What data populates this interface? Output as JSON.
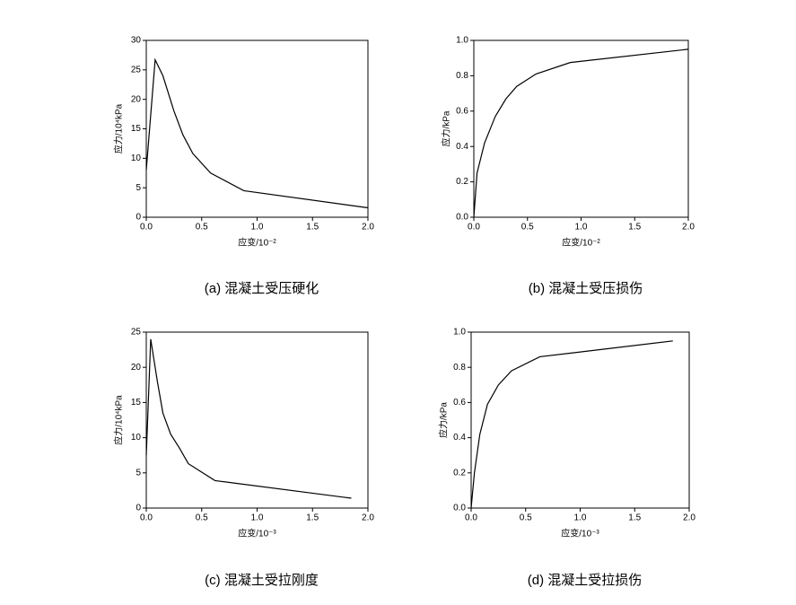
{
  "chart_data": [
    {
      "type": "line",
      "title": "(a)  混凝土受压硬化",
      "x_label": "应变/10⁻²",
      "y_label": "应力/10⁴kPa",
      "color": "#000000",
      "x": [
        0,
        0.08,
        0.15,
        0.25,
        0.33,
        0.42,
        0.58,
        0.88,
        2.0
      ],
      "values": [
        8,
        26.7,
        24,
        18,
        14,
        10.8,
        7.5,
        4.5,
        1.6
      ],
      "xlim": [
        0,
        2.0
      ],
      "ylim": [
        0,
        30
      ],
      "xticks": [
        {
          "value": 0,
          "label": "0.0"
        },
        0.5,
        {
          "value": 1,
          "label": "1.0"
        },
        1.5,
        {
          "value": 2,
          "label": "2.0"
        }
      ],
      "yticks": [
        0,
        5,
        10,
        15,
        20,
        25,
        30
      ]
    },
    {
      "type": "line",
      "title": "(b)  混凝土受压损伤",
      "x_label": "应变/10⁻²",
      "y_label": "应力/kPa",
      "color": "#000000",
      "x": [
        0,
        0.03,
        0.1,
        0.2,
        0.3,
        0.4,
        0.58,
        0.9,
        2.0
      ],
      "values": [
        0,
        0.25,
        0.42,
        0.57,
        0.67,
        0.74,
        0.81,
        0.875,
        0.95
      ],
      "xlim": [
        0,
        2.0
      ],
      "ylim": [
        0,
        1.0
      ],
      "xticks": [
        {
          "value": 0,
          "label": "0.0"
        },
        0.5,
        {
          "value": 1,
          "label": "1.0"
        },
        1.5,
        {
          "value": 2,
          "label": "2.0"
        }
      ],
      "yticks": [
        {
          "value": 0,
          "label": "0.0"
        },
        0.2,
        0.4,
        0.6,
        0.8,
        {
          "value": 1,
          "label": "1.0"
        }
      ]
    },
    {
      "type": "line",
      "title": "(c)  混凝土受拉刚度",
      "x_label": "应变/10⁻³",
      "y_label": "应力/10⁴kPa",
      "color": "#000000",
      "x": [
        0,
        0.04,
        0.1,
        0.15,
        0.22,
        0.3,
        0.38,
        0.62,
        1.85
      ],
      "values": [
        7.5,
        24,
        18,
        13.5,
        10.5,
        8.5,
        6.3,
        3.9,
        1.4
      ],
      "xlim": [
        0,
        2.0
      ],
      "ylim": [
        0,
        25
      ],
      "xticks": [
        {
          "value": 0,
          "label": "0.0"
        },
        0.5,
        {
          "value": 1,
          "label": "1.0"
        },
        1.5,
        {
          "value": 2,
          "label": "2.0"
        }
      ],
      "yticks": [
        0,
        5,
        10,
        15,
        20,
        25
      ]
    },
    {
      "type": "line",
      "title": "(d)  混凝土受拉损伤",
      "x_label": "应变/10⁻³",
      "y_label": "应力/kPa",
      "color": "#000000",
      "x": [
        0,
        0.03,
        0.08,
        0.15,
        0.25,
        0.37,
        0.63,
        1.85
      ],
      "values": [
        0,
        0.2,
        0.42,
        0.59,
        0.7,
        0.78,
        0.86,
        0.95
      ],
      "xlim": [
        0,
        2.0
      ],
      "ylim": [
        0,
        1.0
      ],
      "xticks": [
        {
          "value": 0,
          "label": "0.0"
        },
        0.5,
        {
          "value": 1,
          "label": "1.0"
        },
        1.5,
        {
          "value": 2,
          "label": "2.0"
        }
      ],
      "yticks": [
        {
          "value": 0,
          "label": "0.0"
        },
        0.2,
        0.4,
        0.6,
        0.8,
        {
          "value": 1,
          "label": "1.0"
        }
      ]
    }
  ]
}
